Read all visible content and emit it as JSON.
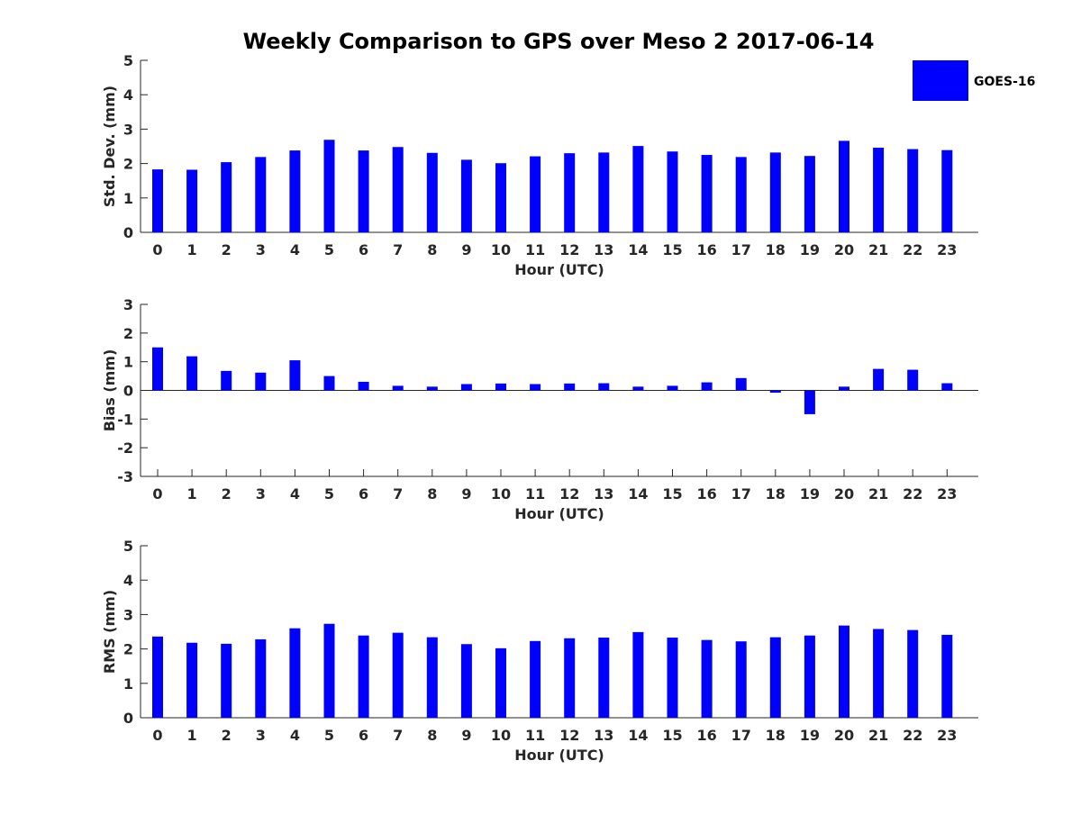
{
  "title": "Weekly Comparison to GPS over Meso 2 2017-06-14",
  "legend": {
    "label": "GOES-16",
    "color": "#0000ff",
    "placement": "top-right"
  },
  "chart_data": [
    {
      "type": "bar",
      "ylabel": "Std. Dev. (mm)",
      "xlabel": "Hour (UTC)",
      "ylim": [
        0,
        5
      ],
      "yticks": [
        "0",
        "1",
        "2",
        "3",
        "4",
        "5"
      ],
      "categories": [
        "0",
        "1",
        "2",
        "3",
        "4",
        "5",
        "6",
        "7",
        "8",
        "9",
        "10",
        "11",
        "12",
        "13",
        "14",
        "15",
        "16",
        "17",
        "18",
        "19",
        "20",
        "21",
        "22",
        "23"
      ],
      "series": [
        {
          "name": "GOES-16",
          "values": [
            1.83,
            1.82,
            2.04,
            2.19,
            2.38,
            2.69,
            2.38,
            2.48,
            2.31,
            2.11,
            2.01,
            2.21,
            2.3,
            2.32,
            2.51,
            2.35,
            2.25,
            2.19,
            2.32,
            2.22,
            2.66,
            2.46,
            2.42,
            2.39
          ]
        }
      ]
    },
    {
      "type": "bar",
      "ylabel": "Bias (mm)",
      "xlabel": "Hour (UTC)",
      "ylim": [
        -3,
        3
      ],
      "yticks": [
        "-3",
        "-2",
        "-1",
        "0",
        "1",
        "2",
        "3"
      ],
      "categories": [
        "0",
        "1",
        "2",
        "3",
        "4",
        "5",
        "6",
        "7",
        "8",
        "9",
        "10",
        "11",
        "12",
        "13",
        "14",
        "15",
        "16",
        "17",
        "18",
        "19",
        "20",
        "21",
        "22",
        "23"
      ],
      "series": [
        {
          "name": "GOES-16",
          "values": [
            1.5,
            1.19,
            0.68,
            0.62,
            1.05,
            0.5,
            0.3,
            0.16,
            0.13,
            0.22,
            0.24,
            0.22,
            0.24,
            0.25,
            0.13,
            0.16,
            0.28,
            0.43,
            -0.08,
            -0.83,
            0.13,
            0.75,
            0.72,
            0.25
          ]
        }
      ]
    },
    {
      "type": "bar",
      "ylabel": "RMS (mm)",
      "xlabel": "Hour (UTC)",
      "ylim": [
        0,
        5
      ],
      "yticks": [
        "0",
        "1",
        "2",
        "3",
        "4",
        "5"
      ],
      "categories": [
        "0",
        "1",
        "2",
        "3",
        "4",
        "5",
        "6",
        "7",
        "8",
        "9",
        "10",
        "11",
        "12",
        "13",
        "14",
        "15",
        "16",
        "17",
        "18",
        "19",
        "20",
        "21",
        "22",
        "23"
      ],
      "series": [
        {
          "name": "GOES-16",
          "values": [
            2.36,
            2.18,
            2.15,
            2.28,
            2.6,
            2.73,
            2.39,
            2.47,
            2.34,
            2.14,
            2.02,
            2.23,
            2.31,
            2.33,
            2.49,
            2.33,
            2.26,
            2.22,
            2.34,
            2.39,
            2.68,
            2.58,
            2.55,
            2.41
          ]
        }
      ]
    }
  ]
}
